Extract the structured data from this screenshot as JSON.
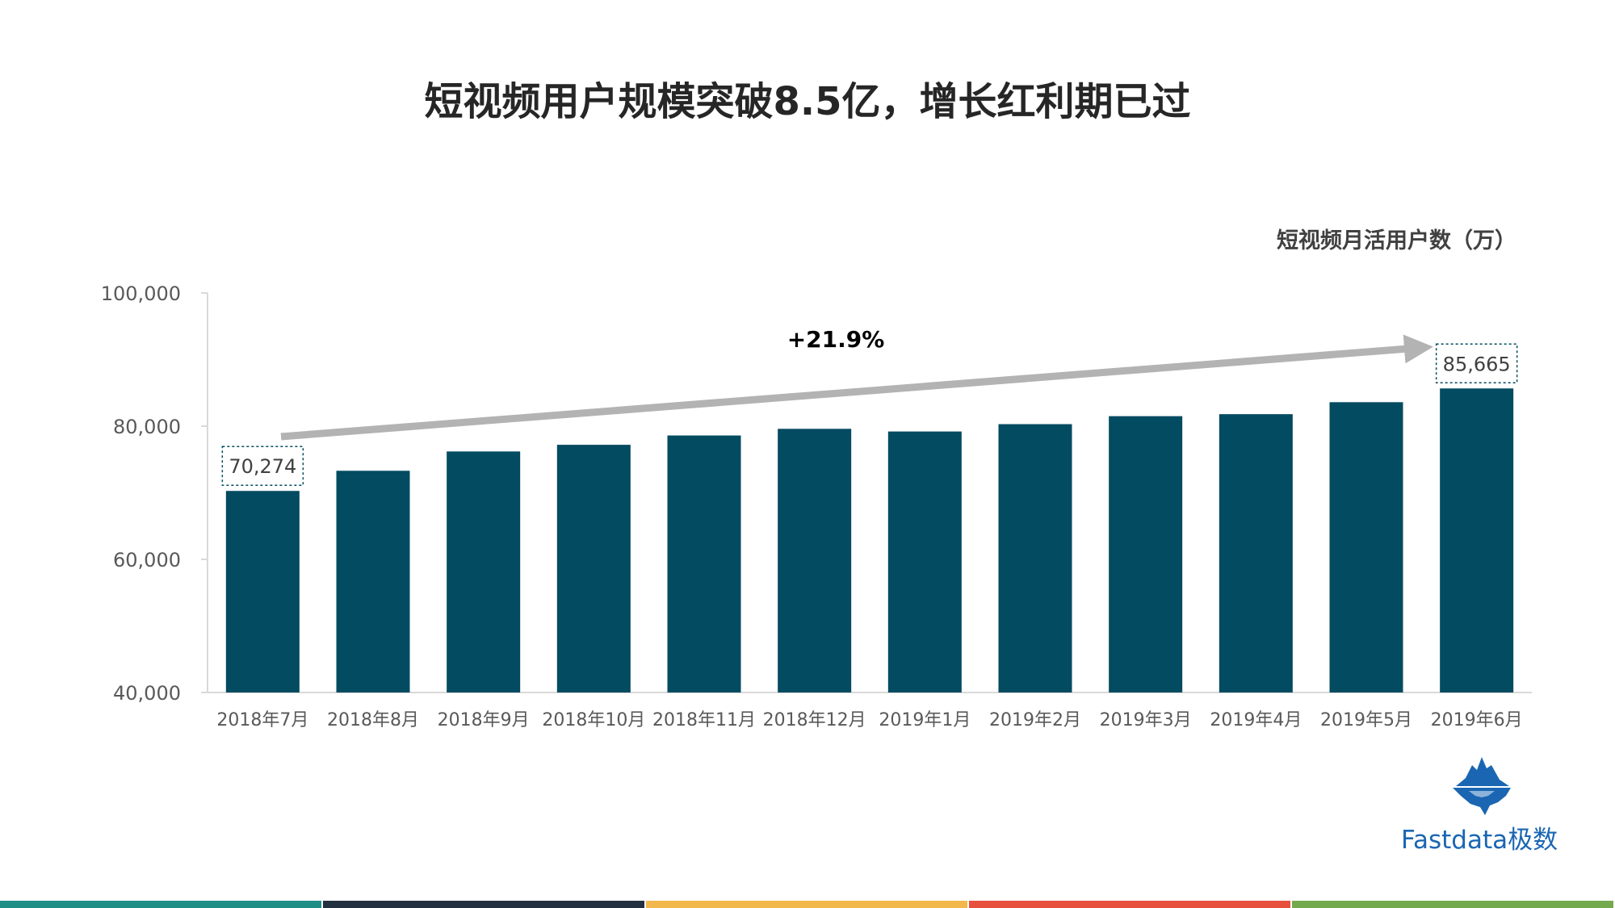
{
  "title": "短视频用户规模突破8.5亿，增长红利期已过",
  "brand": {
    "name": "Fastdata极数",
    "logo_icon": "iceberg-logo-icon"
  },
  "colors": {
    "bar": "#034b61",
    "arrow": "#b3b3b3",
    "axis": "#d9d9d9",
    "strip": [
      "#1f8f85",
      "#233040",
      "#f2b84b",
      "#e8503e",
      "#74aa4e"
    ]
  },
  "chart_data": {
    "type": "bar",
    "title": "短视频月活用户数（万）",
    "categories": [
      "2018年7月",
      "2018年8月",
      "2018年9月",
      "2018年10月",
      "2018年11月",
      "2018年12月",
      "2019年1月",
      "2019年2月",
      "2019年3月",
      "2019年4月",
      "2019年5月",
      "2019年6月"
    ],
    "values": [
      70274,
      73300,
      76200,
      77200,
      78600,
      79600,
      79200,
      80300,
      81500,
      81800,
      83600,
      85665
    ],
    "ylim": [
      40000,
      100000
    ],
    "yticks": [
      "40,000",
      "60,000",
      "80,000",
      "100,000"
    ],
    "data_labels": [
      {
        "index": 0,
        "text": "70,274"
      },
      {
        "index": 11,
        "text": "85,665"
      }
    ],
    "annotation": "+21.9%",
    "grid": false,
    "legend": "none"
  }
}
